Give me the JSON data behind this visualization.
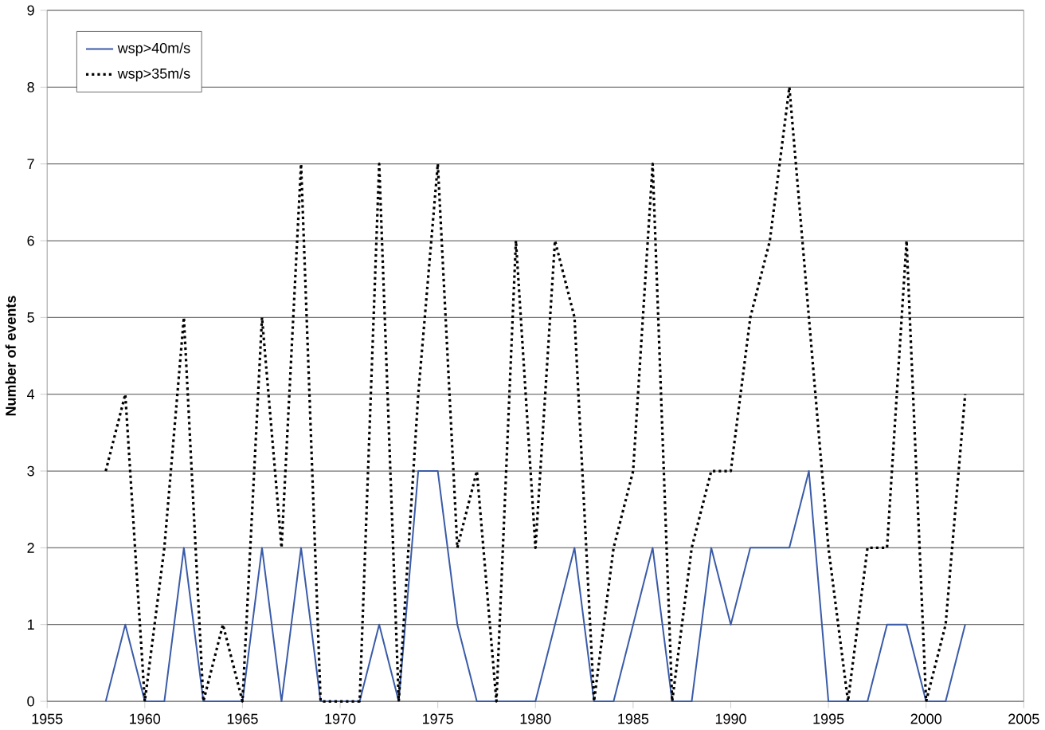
{
  "chart_data": {
    "type": "line",
    "ylabel": "Number of events",
    "x": [
      1958,
      1959,
      1960,
      1961,
      1962,
      1963,
      1964,
      1965,
      1966,
      1967,
      1968,
      1969,
      1970,
      1971,
      1972,
      1973,
      1974,
      1975,
      1976,
      1977,
      1978,
      1979,
      1980,
      1981,
      1982,
      1983,
      1984,
      1985,
      1986,
      1987,
      1988,
      1989,
      1990,
      1991,
      1992,
      1993,
      1994,
      1995,
      1996,
      1997,
      1998,
      1999,
      2000,
      2001,
      2002
    ],
    "series": [
      {
        "name": "wsp>40m/s",
        "color": "#3a5ba8",
        "line_style": "solid",
        "values": [
          0,
          1,
          0,
          0,
          2,
          0,
          0,
          0,
          2,
          0,
          2,
          0,
          0,
          0,
          1,
          0,
          3,
          3,
          1,
          0,
          0,
          0,
          0,
          1,
          2,
          0,
          0,
          1,
          2,
          0,
          0,
          2,
          1,
          2,
          2,
          2,
          3,
          0,
          0,
          0,
          1,
          1,
          0,
          0,
          1
        ]
      },
      {
        "name": "wsp>35m/s",
        "color": "#000000",
        "line_style": "dotted",
        "values": [
          3,
          4,
          0,
          2,
          5,
          0,
          1,
          0,
          5,
          2,
          7,
          0,
          0,
          0,
          7,
          0,
          4,
          7,
          2,
          3,
          0,
          6,
          2,
          6,
          5,
          0,
          2,
          3,
          7,
          0,
          2,
          3,
          3,
          5,
          6,
          8,
          5,
          2,
          0,
          2,
          2,
          6,
          0,
          1,
          4
        ]
      }
    ],
    "xlim": [
      1955,
      2005
    ],
    "xticks": [
      1955,
      1960,
      1965,
      1970,
      1975,
      1980,
      1985,
      1990,
      1995,
      2000,
      2005
    ],
    "ylim": [
      0,
      9
    ],
    "yticks": [
      0,
      1,
      2,
      3,
      4,
      5,
      6,
      7,
      8,
      9
    ],
    "grid": "y",
    "legend": "top left",
    "marker": "none"
  }
}
